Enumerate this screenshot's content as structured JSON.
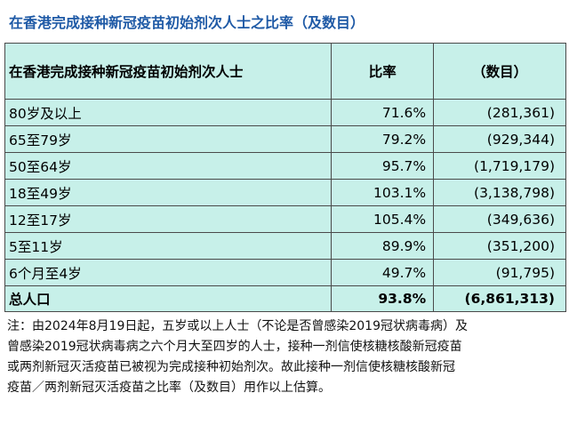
{
  "title": "在香港完成接种新冠疫苗初始剂次人士之比率（及数目）",
  "table": {
    "headers": [
      "在香港完成接种新冠疫苗初始剂次人士",
      "比率",
      "（数目）"
    ],
    "rows": [
      {
        "group": "80岁及以上",
        "rate": "71.6%",
        "count": "(281,361)"
      },
      {
        "group": "65至79岁",
        "rate": "79.2%",
        "count": "(929,344)"
      },
      {
        "group": "50至64岁",
        "rate": "95.7%",
        "count": "(1,719,179)"
      },
      {
        "group": "18至49岁",
        "rate": "103.1%",
        "count": "(3,138,798)"
      },
      {
        "group": "12至17岁",
        "rate": "105.4%",
        "count": "(349,636)"
      },
      {
        "group": "5至11岁",
        "rate": "89.9%",
        "count": "(351,200)"
      },
      {
        "group": "6个月至4岁",
        "rate": "49.7%",
        "count": "(91,795)"
      }
    ],
    "total": {
      "group": "总人口",
      "rate": "93.8%",
      "count": "(6,861,313)"
    }
  },
  "note": {
    "line1": "注：由2024年8月19日起，五岁或以上人士（不论是否曾感染2019冠状病毒病）及",
    "line2": "曾感染2019冠状病毒病之六个月大至四岁的人士，接种一剂信使核糖核酸新冠疫苗",
    "line3": "或两剂新冠灭活疫苗已被视为完成接种初始剂次。故此接种一剂信使核糖核酸新冠",
    "line4": "疫苗／两剂新冠灭活疫苗之比率（及数目）用作以上估算。"
  }
}
